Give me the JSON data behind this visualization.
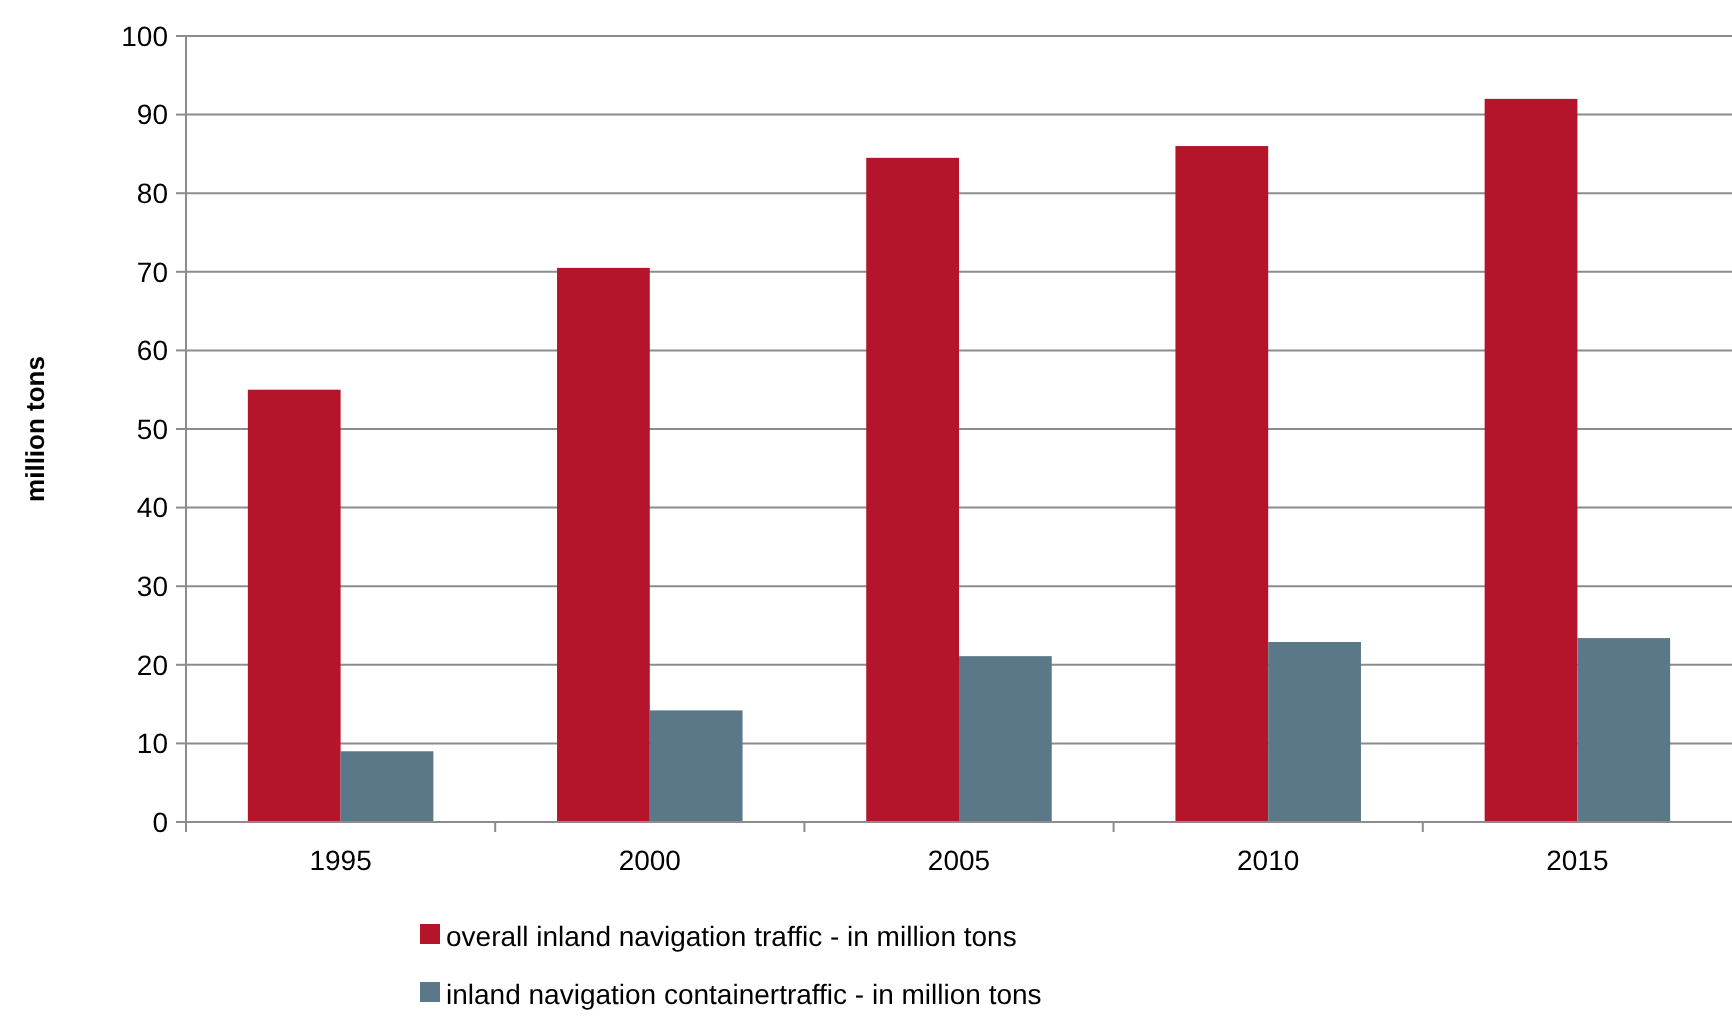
{
  "chart_data": {
    "type": "bar",
    "ylabel": "million tons",
    "categories": [
      "1995",
      "2000",
      "2005",
      "2010",
      "2015"
    ],
    "series": [
      {
        "name": "overall inland navigation traffic - in million tons",
        "color": "#b5152b",
        "values": [
          55,
          70.5,
          84.5,
          86,
          92
        ]
      },
      {
        "name": "inland navigation containertraffic - in million tons",
        "color": "#5a7888",
        "values": [
          9,
          14.2,
          21.1,
          22.9,
          23.4
        ]
      }
    ],
    "ylim": [
      0,
      100
    ],
    "yticks": [
      0,
      10,
      20,
      30,
      40,
      50,
      60,
      70,
      80,
      90,
      100
    ],
    "grid": "y",
    "legend": "bottom"
  }
}
